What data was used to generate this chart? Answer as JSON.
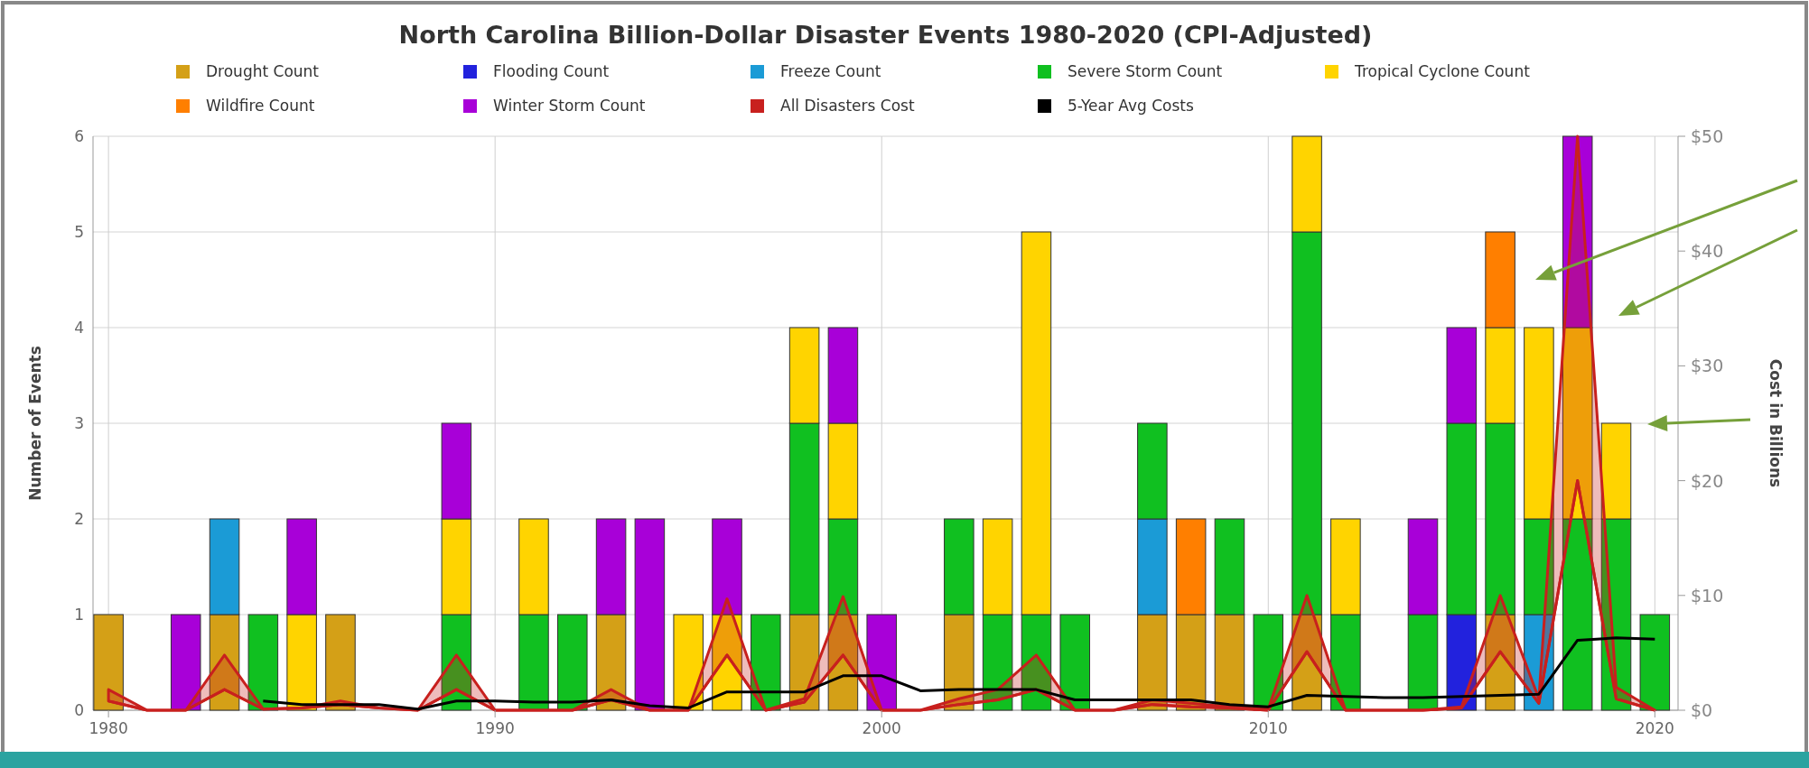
{
  "chart_data": {
    "type": "bar",
    "title": "North Carolina Billion-Dollar Disaster Events 1980-2020 (CPI-Adjusted)",
    "ylabel": "Number of Events",
    "y2label": "Cost in Billions",
    "stacked": true,
    "legend": "top",
    "grid": true,
    "marker": "none",
    "x": [
      1980,
      1981,
      1982,
      1983,
      1984,
      1985,
      1986,
      1987,
      1988,
      1989,
      1990,
      1991,
      1992,
      1993,
      1994,
      1995,
      1996,
      1997,
      1998,
      1999,
      2000,
      2001,
      2002,
      2003,
      2004,
      2005,
      2006,
      2007,
      2008,
      2009,
      2010,
      2011,
      2012,
      2013,
      2014,
      2015,
      2016,
      2017,
      2018,
      2019,
      2020
    ],
    "xlim": [
      1979.6,
      2020.6
    ],
    "xticks": [
      1980,
      1990,
      2000,
      2010,
      2020
    ],
    "ylim": [
      0,
      6
    ],
    "yticks": [
      0,
      1,
      2,
      3,
      4,
      5,
      6
    ],
    "y2lim": [
      0,
      50
    ],
    "y2ticks": [
      {
        "value": 0,
        "label": "$0"
      },
      {
        "value": 10,
        "label": "$10"
      },
      {
        "value": 20,
        "label": "$20"
      },
      {
        "value": 30,
        "label": "$30"
      },
      {
        "value": 40,
        "label": "$40"
      },
      {
        "value": 50,
        "label": "$50"
      }
    ],
    "series": [
      {
        "name": "Drought Count",
        "color": "#d4a017",
        "values": [
          1,
          0,
          0,
          1,
          0,
          0,
          1,
          0,
          0,
          0,
          0,
          0,
          0,
          1,
          0,
          0,
          0,
          0,
          1,
          1,
          0,
          0,
          1,
          0,
          0,
          0,
          0,
          1,
          1,
          1,
          0,
          1,
          0,
          0,
          0,
          0,
          1,
          0,
          0,
          0,
          0
        ]
      },
      {
        "name": "Flooding Count",
        "color": "#2222dd",
        "values": [
          0,
          0,
          0,
          0,
          0,
          0,
          0,
          0,
          0,
          0,
          0,
          0,
          0,
          0,
          0,
          0,
          0,
          0,
          0,
          0,
          0,
          0,
          0,
          0,
          0,
          0,
          0,
          0,
          0,
          0,
          0,
          0,
          0,
          0,
          0,
          1,
          0,
          0,
          0,
          0,
          0
        ]
      },
      {
        "name": "Freeze Count",
        "color": "#1b9bd6",
        "values": [
          0,
          0,
          0,
          1,
          0,
          0,
          0,
          0,
          0,
          0,
          0,
          0,
          0,
          0,
          0,
          0,
          0,
          0,
          0,
          0,
          0,
          0,
          0,
          0,
          0,
          0,
          0,
          1,
          0,
          0,
          0,
          0,
          0,
          0,
          0,
          0,
          0,
          1,
          0,
          0,
          0
        ]
      },
      {
        "name": "Severe Storm Count",
        "color": "#10c020",
        "values": [
          0,
          0,
          0,
          0,
          1,
          0,
          0,
          0,
          0,
          1,
          0,
          1,
          1,
          0,
          0,
          0,
          0,
          1,
          2,
          1,
          0,
          0,
          1,
          1,
          1,
          1,
          0,
          1,
          0,
          1,
          1,
          4,
          1,
          0,
          1,
          2,
          2,
          1,
          2,
          2,
          1
        ]
      },
      {
        "name": "Tropical Cyclone Count",
        "color": "#ffd400",
        "values": [
          0,
          0,
          0,
          0,
          0,
          1,
          0,
          0,
          0,
          1,
          0,
          1,
          0,
          0,
          0,
          1,
          1,
          0,
          1,
          1,
          0,
          0,
          0,
          1,
          4,
          0,
          0,
          0,
          0,
          0,
          0,
          1,
          1,
          0,
          0,
          0,
          1,
          2,
          2,
          1,
          0
        ]
      },
      {
        "name": "Wildfire Count",
        "color": "#ff7f00",
        "values": [
          0,
          0,
          0,
          0,
          0,
          0,
          0,
          0,
          0,
          0,
          0,
          0,
          0,
          0,
          0,
          0,
          0,
          0,
          0,
          0,
          0,
          0,
          0,
          0,
          0,
          0,
          0,
          0,
          1,
          0,
          0,
          0,
          0,
          0,
          0,
          0,
          1,
          0,
          0,
          0,
          0
        ]
      },
      {
        "name": "Winter Storm Count",
        "color": "#a800d8",
        "values": [
          0,
          0,
          1,
          0,
          0,
          1,
          0,
          0,
          0,
          1,
          0,
          0,
          0,
          1,
          2,
          0,
          1,
          0,
          0,
          1,
          1,
          0,
          0,
          0,
          0,
          0,
          0,
          0,
          0,
          0,
          0,
          0,
          0,
          0,
          1,
          1,
          0,
          0,
          2,
          0,
          0
        ]
      },
      {
        "name": "All Disasters Cost",
        "type": "line",
        "axis": "y2",
        "color": "#c8201e",
        "values": [
          0.8,
          0,
          0,
          1.8,
          0.1,
          0.2,
          0.5,
          0.2,
          0,
          1.8,
          0,
          0,
          0,
          0.9,
          0,
          0,
          4.8,
          0,
          0.7,
          4.8,
          0,
          0,
          0.5,
          0.9,
          1.8,
          0,
          0,
          0.5,
          0.3,
          0.2,
          0,
          5.1,
          0,
          0,
          0,
          0.2,
          5.1,
          0.6,
          20,
          1,
          0
        ],
        "lower": [
          0.8,
          0,
          0,
          1.8,
          0.1,
          0.2,
          0.5,
          0.2,
          0,
          1.8,
          0,
          0,
          0,
          0.9,
          0,
          0,
          4.8,
          0,
          0.7,
          4.8,
          0,
          0,
          0.5,
          0.9,
          1.8,
          0,
          0,
          0.5,
          0.3,
          0.2,
          0,
          5.1,
          0,
          0,
          0,
          0.2,
          5.1,
          0.6,
          20,
          1,
          0
        ],
        "upper": [
          1.8,
          0,
          0,
          4.8,
          0.1,
          0.2,
          0.8,
          0.2,
          0,
          4.8,
          0,
          0,
          0,
          1.8,
          0,
          0,
          9.7,
          0,
          1,
          9.9,
          0,
          0,
          1,
          1.8,
          4.8,
          0,
          0,
          0.9,
          0.6,
          0.3,
          0.1,
          10,
          0,
          0,
          0,
          0.3,
          10,
          1,
          50,
          2,
          0
        ]
      },
      {
        "name": "5-Year Avg Costs",
        "type": "line",
        "axis": "y2",
        "color": "#000000",
        "x": [
          1984,
          1985,
          1986,
          1987,
          1988,
          1989,
          1990,
          1991,
          1992,
          1993,
          1994,
          1995,
          1996,
          1997,
          1998,
          1999,
          2000,
          2001,
          2002,
          2003,
          2004,
          2005,
          2006,
          2007,
          2008,
          2009,
          2010,
          2011,
          2012,
          2013,
          2014,
          2015,
          2016,
          2017,
          2018,
          2019,
          2020
        ],
        "values": [
          0.8,
          0.5,
          0.5,
          0.5,
          0.1,
          0.8,
          0.8,
          0.7,
          0.7,
          0.9,
          0.4,
          0.2,
          1.6,
          1.6,
          1.6,
          3,
          3,
          1.7,
          1.8,
          1.8,
          1.8,
          0.9,
          0.9,
          0.9,
          0.9,
          0.5,
          0.3,
          1.3,
          1.2,
          1.1,
          1.1,
          1.2,
          1.3,
          1.4,
          6.1,
          6.3,
          6.2
        ]
      }
    ]
  }
}
